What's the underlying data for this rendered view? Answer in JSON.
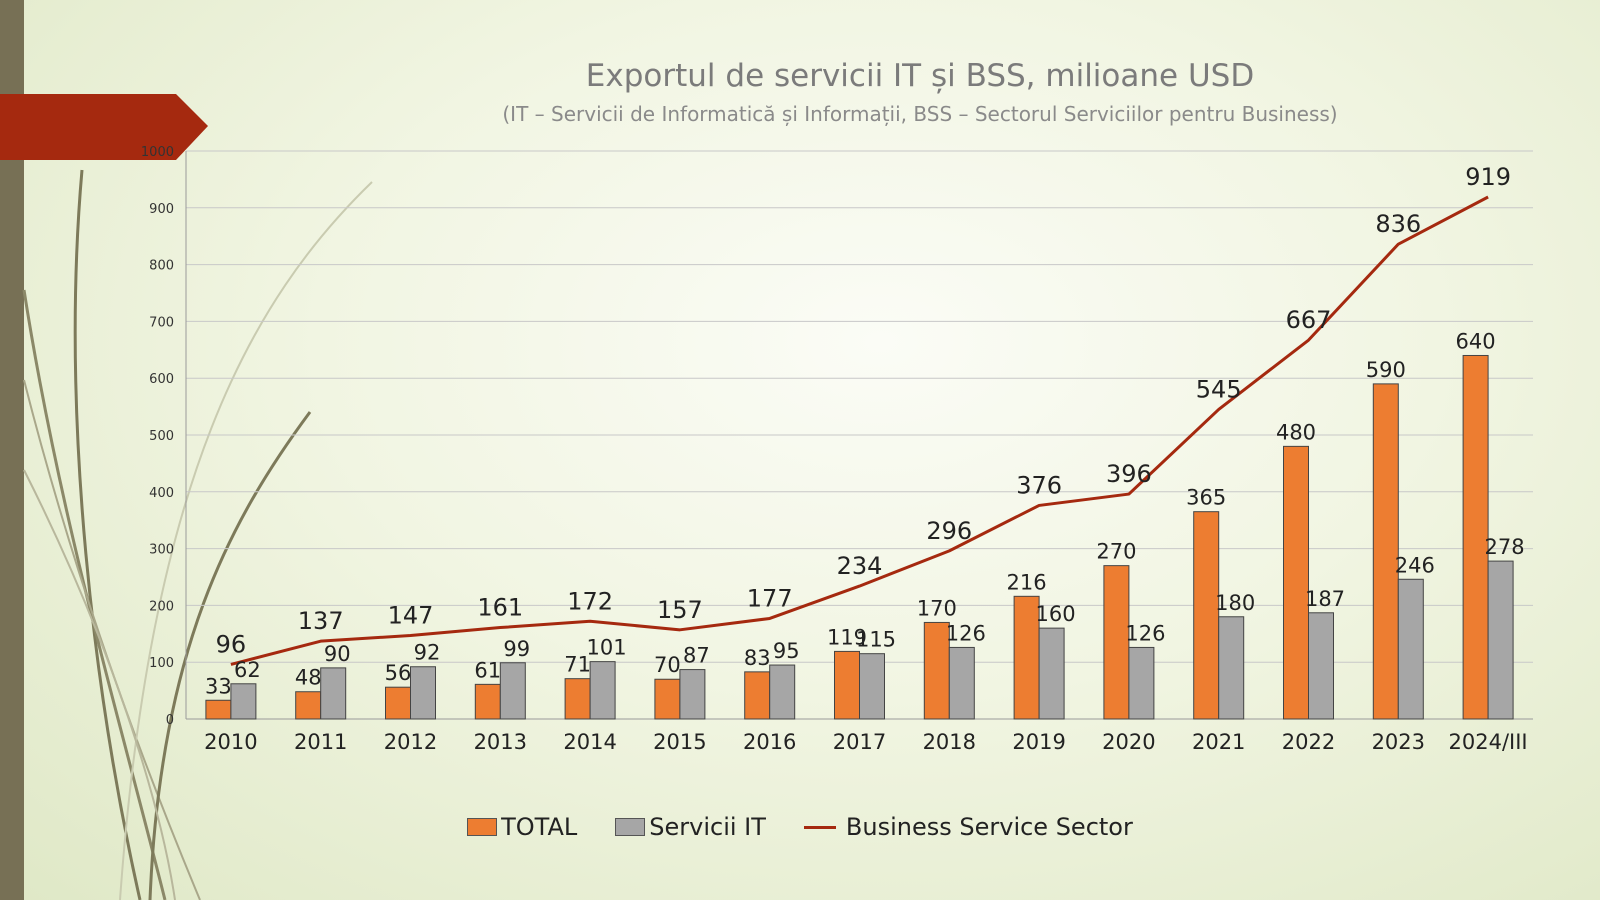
{
  "colors": {
    "total": "#ed7d31",
    "it": "#a6a6a6",
    "bss": "#a5290f",
    "banner": "#a5290f",
    "sidebar": "#777055"
  },
  "chart_data": {
    "type": "bar",
    "title": "Exportul de servicii IT și BSS, milioane USD",
    "subtitle": "(IT – Servicii de Informatică și Informații, BSS – Sectorul Serviciilor pentru Business)",
    "categories": [
      "2010",
      "2011",
      "2012",
      "2013",
      "2014",
      "2015",
      "2016",
      "2017",
      "2018",
      "2019",
      "2020",
      "2021",
      "2022",
      "2023",
      "2024/III"
    ],
    "series": [
      {
        "name": "TOTAL",
        "type": "bar",
        "values": [
          33,
          48,
          56,
          61,
          71,
          70,
          83,
          119,
          170,
          216,
          270,
          365,
          480,
          590,
          640
        ]
      },
      {
        "name": "Servicii IT",
        "type": "bar",
        "values": [
          62,
          90,
          92,
          99,
          101,
          87,
          95,
          115,
          126,
          160,
          126,
          180,
          187,
          246,
          278
        ]
      },
      {
        "name": "Business Service Sector",
        "type": "line",
        "values": [
          96,
          137,
          147,
          161,
          172,
          157,
          177,
          234,
          296,
          376,
          396,
          545,
          667,
          836,
          919
        ]
      }
    ],
    "yticks": [
      0,
      100,
      200,
      300,
      400,
      500,
      600,
      700,
      800,
      900,
      1000
    ],
    "ylim": [
      0,
      1000
    ],
    "grid": true,
    "legend": "bottom"
  }
}
